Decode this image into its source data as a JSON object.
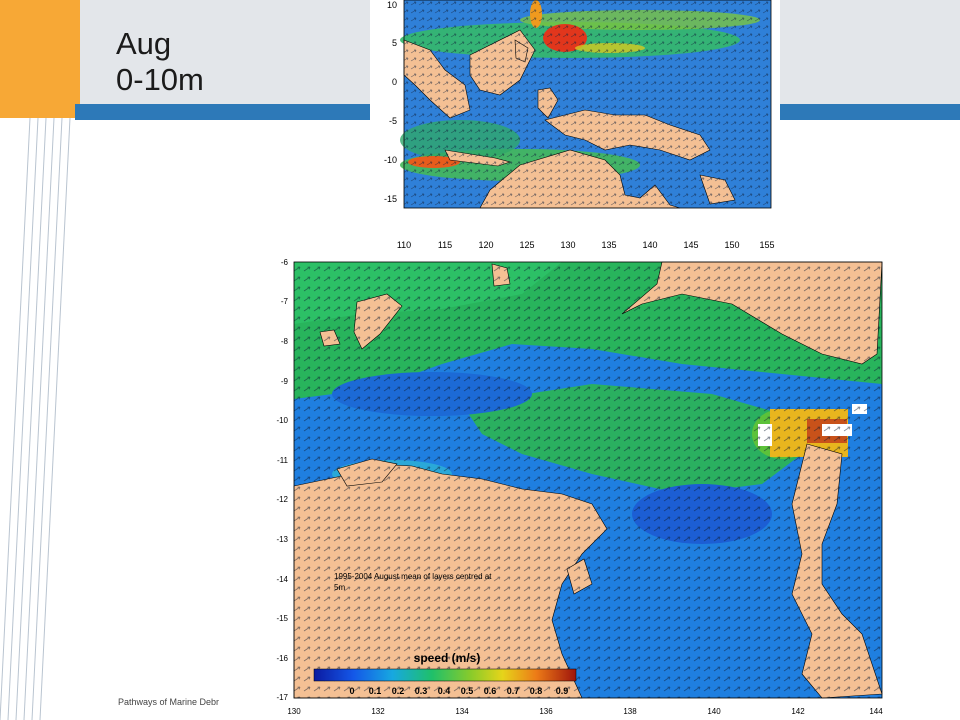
{
  "slide": {
    "title": "Aug\n0-10m",
    "footer": "Pathways of Marine Debr"
  },
  "top_map": {
    "lat_ticks": [
      "10",
      "5",
      "0",
      "-5",
      "-10",
      "-15"
    ],
    "lon_ticks": [
      "110",
      "115",
      "120",
      "125",
      "130",
      "135",
      "140",
      "145",
      "150",
      "155"
    ]
  },
  "bottom_map": {
    "lat_ticks": [
      "-6",
      "-7",
      "-8",
      "-9",
      "-10",
      "-11",
      "-12",
      "-13",
      "-14",
      "-15",
      "-16",
      "-17"
    ],
    "lon_ticks": [
      "130",
      "132",
      "134",
      "136",
      "138",
      "140",
      "142",
      "144"
    ],
    "annotation_line1": "1995-2004 August mean of layers centred at",
    "annotation_line2": "5m",
    "colorbar_title": "speed (m/s)",
    "colorbar_ticks": [
      "0",
      "0.1",
      "0.2",
      "0.3",
      "0.4",
      "0.5",
      "0.6",
      "0.7",
      "0.8",
      "0.9"
    ]
  },
  "colors": {
    "orange": "#f7a836",
    "band": "#e3e6ea",
    "blue_rule": "#2d79b8",
    "land": "#f4c094",
    "ocean_low": "#1d5fd8",
    "ocean_mid": "#2bb04a",
    "ocean_high": "#e7d21a",
    "ocean_max": "#c81e10"
  }
}
